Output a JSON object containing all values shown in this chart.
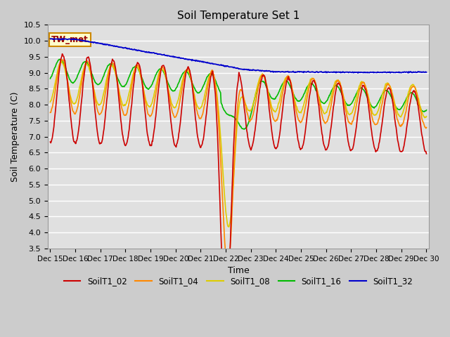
{
  "title": "Soil Temperature Set 1",
  "xlabel": "Time",
  "ylabel": "Soil Temperature (C)",
  "ylim": [
    3.5,
    10.5
  ],
  "yticks": [
    3.5,
    4.0,
    4.5,
    5.0,
    5.5,
    6.0,
    6.5,
    7.0,
    7.5,
    8.0,
    8.5,
    9.0,
    9.5,
    10.0,
    10.5
  ],
  "bg_color": "#cccccc",
  "plot_bg_color": "#e0e0e0",
  "grid_color": "#ffffff",
  "colors": {
    "SoilT1_02": "#cc0000",
    "SoilT1_04": "#ff8800",
    "SoilT1_08": "#ddcc00",
    "SoilT1_16": "#00bb00",
    "SoilT1_32": "#0000cc"
  },
  "legend_labels": [
    "SoilT1_02",
    "SoilT1_04",
    "SoilT1_08",
    "SoilT1_16",
    "SoilT1_32"
  ],
  "tw_met_label": "TW_met",
  "tw_met_color": "#990000",
  "tw_met_bg": "#ffffcc",
  "tw_met_edge": "#cc8800"
}
